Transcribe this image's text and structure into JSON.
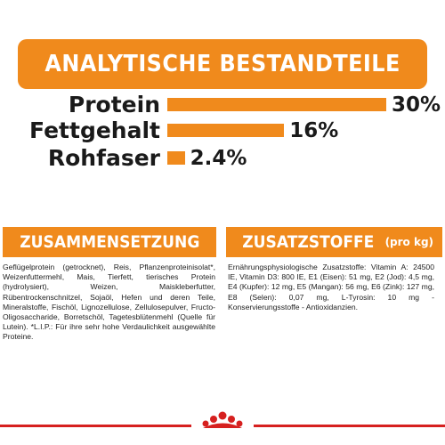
{
  "header": {
    "title": "ANALYTISCHE BESTANDTEILE"
  },
  "analysis": [
    {
      "label": "Protein",
      "value": "30%",
      "percent": 30
    },
    {
      "label": "Fettgehalt",
      "value": "16%",
      "percent": 16
    },
    {
      "label": "Rohfaser",
      "value": "2.4%",
      "percent": 2.4
    }
  ],
  "composition": {
    "title": "ZUSAMMENSETZUNG",
    "text": "Geflügelprotein (getrocknet), Reis, Pflanzenproteinisolat*, Weizenfuttermehl, Mais, Tierfett, tierisches Protein (hydrolysiert), Weizen, Maiskleberfutter, Rübentrockenschnitzel, Sojaöl, Hefen und deren Teile, Mineralstoffe, Fischöl, Lignozellulose, Zellulosepulver, Fructo-Oligosaccharide, Borretschöl, Tagetesblütenmehl (Quelle für Lutein). *L.I.P.: Für ihre sehr hohe Verdaulichkeit ausgewählte Proteine."
  },
  "additives": {
    "title": "ZUSATZSTOFFE",
    "suffix": "(pro kg)",
    "text": "Ernährungsphysiologische Zusatzstoffe: Vitamin A: 24500 IE, Vitamin D3: 800 IE, E1 (Eisen): 51 mg, E2 (Jod): 4,5 mg, E4 (Kupfer): 12 mg, E5 (Mangan): 56 mg, E6 (Zink): 127 mg, E8 (Selen): 0,07 mg, L-Tyrosin: 10 mg - Konservierungsstoffe - Antioxidanzien."
  },
  "colors": {
    "accent": "#f08a1c",
    "footer_line": "#d6201f"
  },
  "footer": {
    "logo_icon": "royal-canin-crown-icon"
  }
}
